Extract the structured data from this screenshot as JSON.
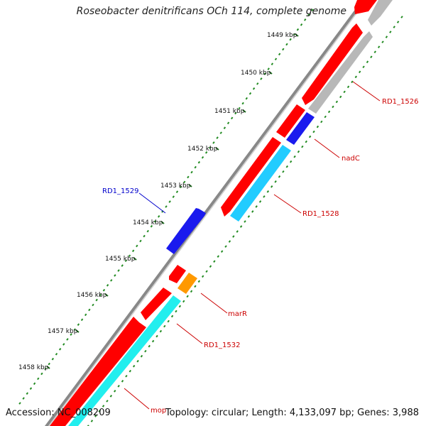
{
  "title": "Roseobacter denitrificans OCh 114, complete genome",
  "footer": {
    "accession": "Accession: NC_008209",
    "summary": "Topology: circular; Length: 4,133,097 bp; Genes: 3,988"
  },
  "kbp_ticks": [
    "1449 kbp",
    "1450 kbp",
    "1451 kbp",
    "1452 kbp",
    "1453 kbp",
    "1454 kbp",
    "1455 kbp",
    "1456 kbp",
    "1457 kbp",
    "1458 kbp"
  ],
  "gene_labels": {
    "rd1_1526": "RD1_1526",
    "nadc": "nadC",
    "rd1_1528": "RD1_1528",
    "rd1_1529": "RD1_1529",
    "marr": "marR",
    "rd1_1532": "RD1_1532",
    "mop": "mop"
  },
  "colors": {
    "cds": "#ff0000",
    "rna_gray": "#b8b8b8",
    "nadc": "#1a1aee",
    "rd1_1528": "#22ccff",
    "rd1_1529": "#1a1aee",
    "marr": "#ff9900",
    "rd1_1532": "#22eeee",
    "backbone": "#888888",
    "gc_dots": "#228b22",
    "label_red": "#cc0000",
    "label_blue": "#0000cc"
  }
}
